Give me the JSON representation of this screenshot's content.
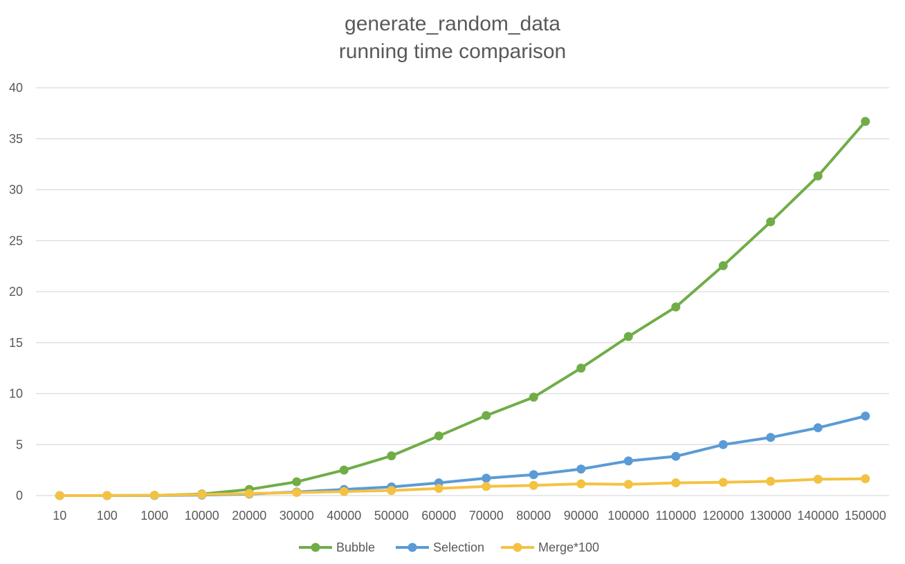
{
  "chart_data": {
    "type": "line",
    "title": "generate_random_data",
    "subtitle": "running time comparison",
    "xlabel": "",
    "ylabel": "",
    "categories": [
      "10",
      "100",
      "1000",
      "10000",
      "20000",
      "30000",
      "40000",
      "50000",
      "60000",
      "70000",
      "80000",
      "90000",
      "100000",
      "110000",
      "120000",
      "130000",
      "140000",
      "150000"
    ],
    "ylim": [
      0,
      40
    ],
    "yticks": [
      0,
      5,
      10,
      15,
      20,
      25,
      30,
      35,
      40
    ],
    "grid": true,
    "legend": "bottom",
    "series": [
      {
        "name": "Bubble",
        "color": "#70AD47",
        "values": [
          0,
          0,
          0.02,
          0.15,
          0.6,
          1.35,
          2.5,
          3.9,
          5.85,
          7.85,
          9.65,
          12.5,
          15.6,
          18.5,
          22.55,
          26.85,
          31.35,
          36.7
        ]
      },
      {
        "name": "Selection",
        "color": "#5B9BD5",
        "values": [
          0,
          0,
          0.01,
          0.05,
          0.15,
          0.35,
          0.6,
          0.85,
          1.25,
          1.7,
          2.05,
          2.6,
          3.4,
          3.85,
          5.0,
          5.7,
          6.65,
          7.8
        ]
      },
      {
        "name": "Merge*100",
        "color": "#F4C242",
        "values": [
          0,
          0.01,
          0.03,
          0.1,
          0.2,
          0.3,
          0.4,
          0.5,
          0.7,
          0.9,
          1.0,
          1.15,
          1.1,
          1.25,
          1.3,
          1.4,
          1.6,
          1.65
        ]
      }
    ]
  }
}
